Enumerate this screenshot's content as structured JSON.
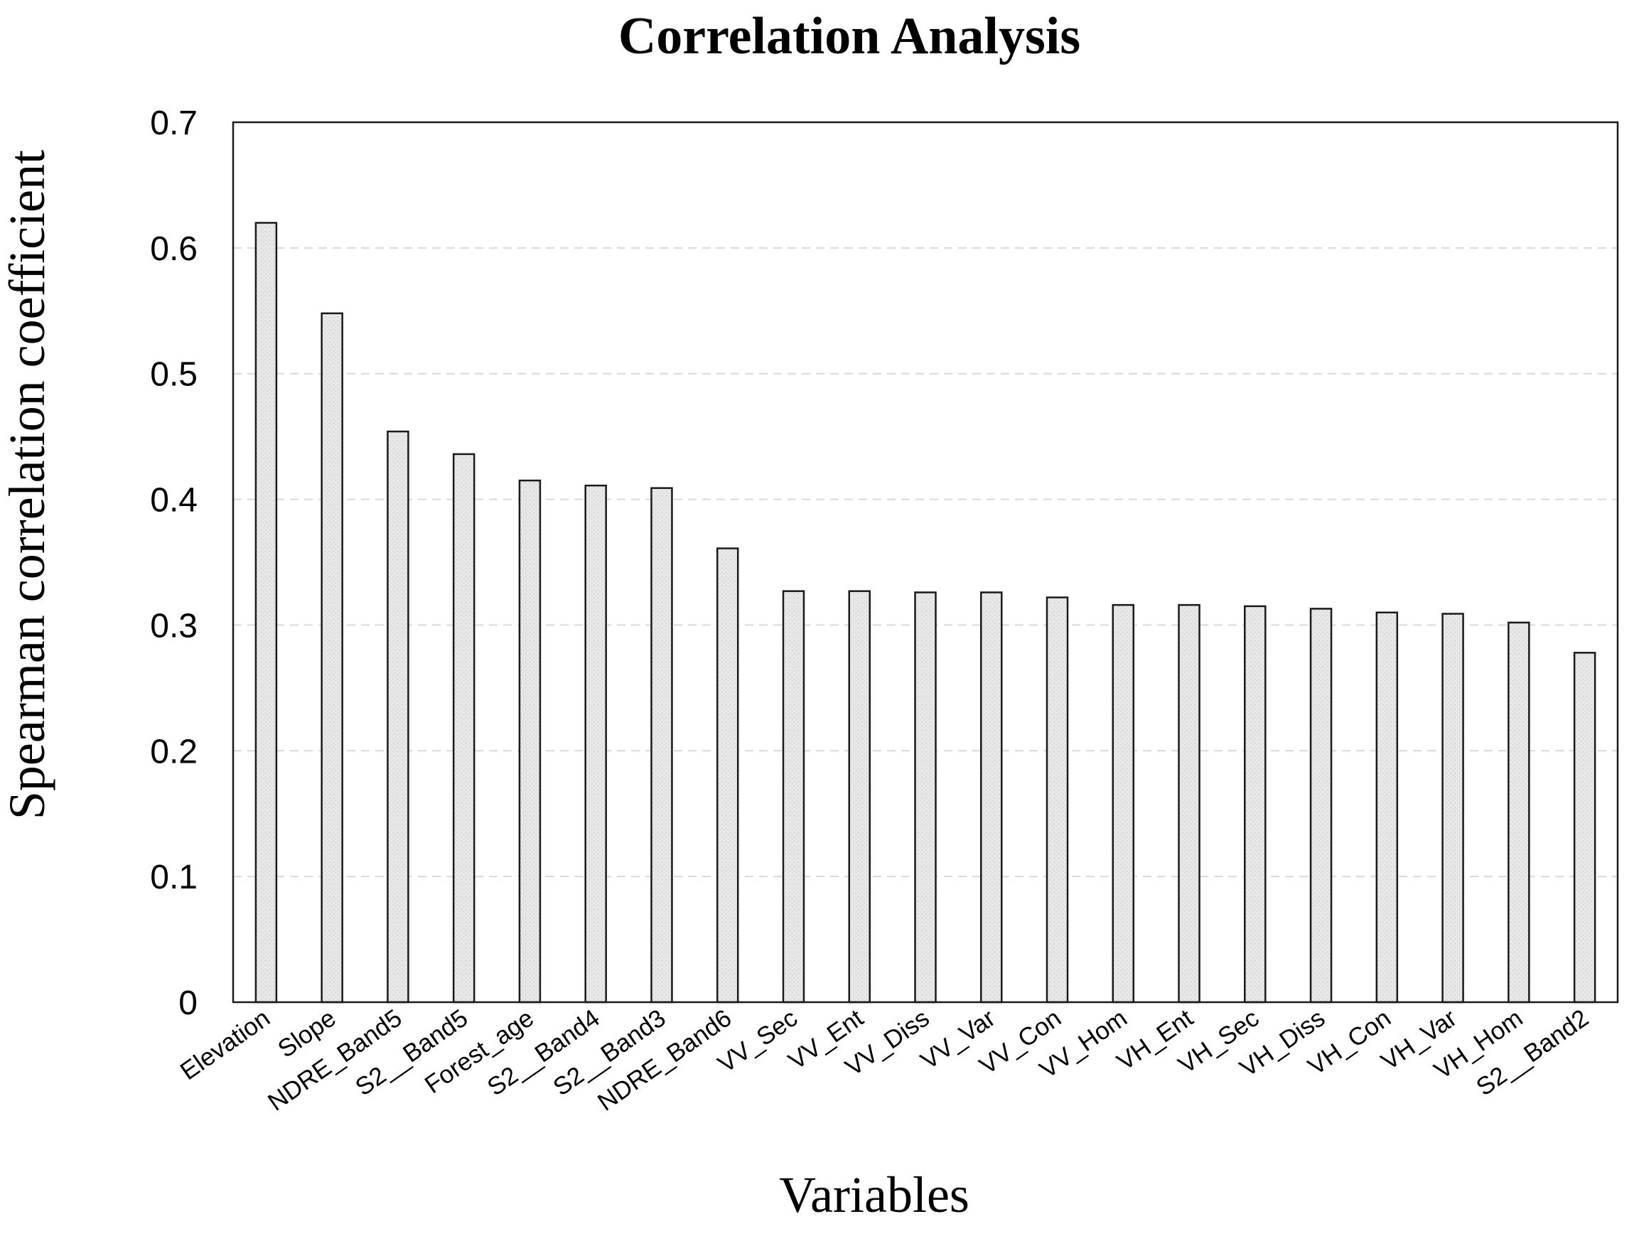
{
  "chart_data": {
    "type": "bar",
    "title": "Correlation Analysis",
    "xlabel": "Variables",
    "ylabel": "Spearman correlation coefficient",
    "ylim": [
      0,
      0.7
    ],
    "yticks": [
      "0",
      "0.1",
      "0.2",
      "0.3",
      "0.4",
      "0.5",
      "0.6",
      "0.7"
    ],
    "grid": true,
    "categories": [
      "Elevation",
      "Slope",
      "NDRE_Band5",
      "S2__Band5",
      "Forest_age",
      "S2__Band4",
      "S2__Band3",
      "NDRE_Band6",
      "VV_Sec",
      "VV_Ent",
      "VV_Diss",
      "VV_Var",
      "VV_Con",
      "VV_Hom",
      "VH_Ent",
      "VH_Sec",
      "VH_Diss",
      "VH_Con",
      "VH_Var",
      "VH_Hom",
      "S2__Band2"
    ],
    "values": [
      0.62,
      0.548,
      0.454,
      0.436,
      0.415,
      0.411,
      0.409,
      0.361,
      0.327,
      0.327,
      0.326,
      0.326,
      0.322,
      0.316,
      0.316,
      0.315,
      0.313,
      0.31,
      0.309,
      0.302,
      0.278
    ],
    "bar_fill": "#e6e6e6",
    "bar_edge": "#1a1a1a"
  }
}
